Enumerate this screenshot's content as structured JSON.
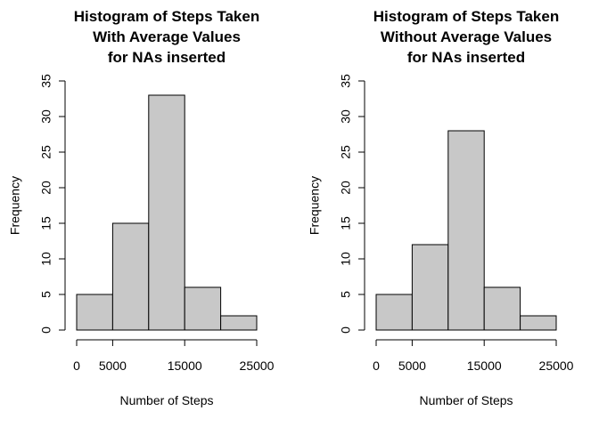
{
  "chart_data": [
    {
      "type": "bar",
      "title": [
        "Histogram of Steps Taken",
        "With Average Values",
        "for NAs inserted"
      ],
      "xlabel": "Number of Steps",
      "ylabel": "Frequency",
      "bins": [
        [
          0,
          5000
        ],
        [
          5000,
          10000
        ],
        [
          10000,
          15000
        ],
        [
          15000,
          20000
        ],
        [
          20000,
          25000
        ]
      ],
      "values": [
        5,
        15,
        33,
        6,
        2
      ],
      "xlim": [
        0,
        25000
      ],
      "ylim": [
        0,
        35
      ],
      "xticks": [
        0,
        5000,
        15000,
        25000
      ],
      "xtick_labels": [
        "0",
        "5000",
        "15000",
        "25000"
      ],
      "yticks": [
        0,
        5,
        10,
        15,
        20,
        25,
        30,
        35
      ],
      "ytick_labels": [
        "0",
        "5",
        "10",
        "15",
        "20",
        "25",
        "30",
        "35"
      ],
      "bar_color": "#c8c8c8",
      "grid": false
    },
    {
      "type": "bar",
      "title": [
        "Histogram of Steps Taken",
        "Without Average Values",
        "for NAs inserted"
      ],
      "xlabel": "Number of Steps",
      "ylabel": "Frequency",
      "bins": [
        [
          0,
          5000
        ],
        [
          5000,
          10000
        ],
        [
          10000,
          15000
        ],
        [
          15000,
          20000
        ],
        [
          20000,
          25000
        ]
      ],
      "values": [
        5,
        12,
        28,
        6,
        2
      ],
      "xlim": [
        0,
        25000
      ],
      "ylim": [
        0,
        35
      ],
      "xticks": [
        0,
        5000,
        15000,
        25000
      ],
      "xtick_labels": [
        "0",
        "5000",
        "15000",
        "25000"
      ],
      "yticks": [
        0,
        5,
        10,
        15,
        20,
        25,
        30,
        35
      ],
      "ytick_labels": [
        "0",
        "5",
        "10",
        "15",
        "20",
        "25",
        "30",
        "35"
      ],
      "bar_color": "#c8c8c8",
      "grid": false
    }
  ]
}
